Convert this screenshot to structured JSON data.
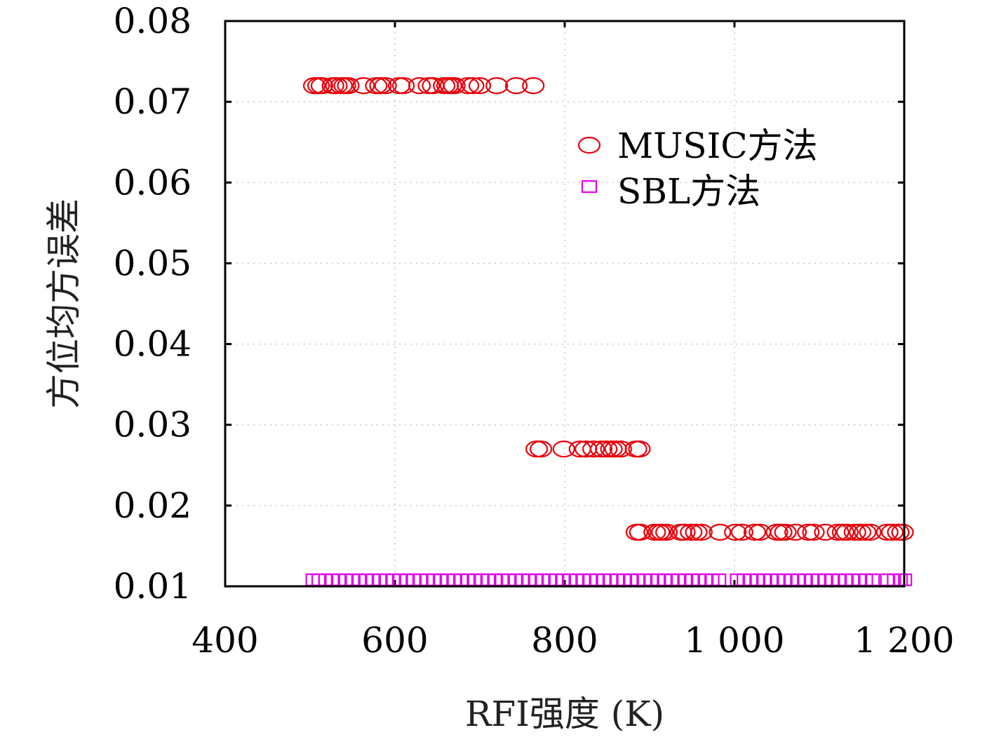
{
  "chart_data": {
    "type": "scatter",
    "xlabel": "RFI强度 (K)",
    "ylabel": "方位均方误差",
    "xlim": [
      400,
      1200
    ],
    "ylim": [
      0.01,
      0.08
    ],
    "x_ticks": [
      400,
      600,
      800,
      1000,
      1200
    ],
    "x_tick_labels": [
      "400",
      "600",
      "800",
      "1 000",
      "1 200"
    ],
    "y_ticks": [
      0.01,
      0.02,
      0.03,
      0.04,
      0.05,
      0.06,
      0.07,
      0.08
    ],
    "y_tick_labels": [
      "0.01",
      "0.02",
      "0.03",
      "0.04",
      "0.05",
      "0.06",
      "0.07",
      "0.08"
    ],
    "grid": true,
    "legend_position": "top-right",
    "series": [
      {
        "name": "MUSIC方法",
        "marker": "circle",
        "color": "#e8000b",
        "points": [
          [
            505,
            0.072
          ],
          [
            510,
            0.072
          ],
          [
            514,
            0.072
          ],
          [
            527,
            0.072
          ],
          [
            531,
            0.072
          ],
          [
            537,
            0.072
          ],
          [
            541,
            0.072
          ],
          [
            545,
            0.072
          ],
          [
            563,
            0.072
          ],
          [
            578,
            0.072
          ],
          [
            583,
            0.072
          ],
          [
            589,
            0.072
          ],
          [
            605,
            0.072
          ],
          [
            610,
            0.072
          ],
          [
            629,
            0.072
          ],
          [
            640,
            0.072
          ],
          [
            645,
            0.072
          ],
          [
            658,
            0.072
          ],
          [
            662,
            0.072
          ],
          [
            666,
            0.072
          ],
          [
            670,
            0.072
          ],
          [
            686,
            0.072
          ],
          [
            692,
            0.072
          ],
          [
            700,
            0.072
          ],
          [
            720,
            0.072
          ],
          [
            743,
            0.072
          ],
          [
            763,
            0.072
          ],
          [
            767,
            0.027
          ],
          [
            772,
            0.027
          ],
          [
            799,
            0.027
          ],
          [
            818,
            0.027
          ],
          [
            825,
            0.027
          ],
          [
            834,
            0.027
          ],
          [
            843,
            0.027
          ],
          [
            849,
            0.027
          ],
          [
            855,
            0.027
          ],
          [
            860,
            0.027
          ],
          [
            866,
            0.027
          ],
          [
            884,
            0.027
          ],
          [
            888,
            0.027
          ],
          [
            885,
            0.0167
          ],
          [
            889,
            0.0167
          ],
          [
            906,
            0.0167
          ],
          [
            911,
            0.0167
          ],
          [
            915,
            0.0167
          ],
          [
            920,
            0.0167
          ],
          [
            937,
            0.0167
          ],
          [
            941,
            0.0167
          ],
          [
            949,
            0.0167
          ],
          [
            955,
            0.0167
          ],
          [
            961,
            0.0167
          ],
          [
            983,
            0.0167
          ],
          [
            1001,
            0.0167
          ],
          [
            1009,
            0.0167
          ],
          [
            1024,
            0.0167
          ],
          [
            1030,
            0.0167
          ],
          [
            1050,
            0.0167
          ],
          [
            1055,
            0.0167
          ],
          [
            1060,
            0.0167
          ],
          [
            1072,
            0.0167
          ],
          [
            1087,
            0.0167
          ],
          [
            1093,
            0.0167
          ],
          [
            1107,
            0.0167
          ],
          [
            1122,
            0.0167
          ],
          [
            1128,
            0.0167
          ],
          [
            1133,
            0.0167
          ],
          [
            1142,
            0.0167
          ],
          [
            1148,
            0.0167
          ],
          [
            1154,
            0.0167
          ],
          [
            1160,
            0.0167
          ],
          [
            1180,
            0.0167
          ],
          [
            1186,
            0.0167
          ],
          [
            1193,
            0.0167
          ],
          [
            1198,
            0.0167
          ]
        ]
      },
      {
        "name": "SBL方法",
        "marker": "square",
        "color": "#e800e8",
        "points": [
          [
            503,
            0.0108
          ],
          [
            510,
            0.0108
          ],
          [
            518,
            0.0108
          ],
          [
            526,
            0.0108
          ],
          [
            534,
            0.0108
          ],
          [
            542,
            0.0108
          ],
          [
            550,
            0.0108
          ],
          [
            558,
            0.0108
          ],
          [
            566,
            0.0108
          ],
          [
            574,
            0.0108
          ],
          [
            582,
            0.0108
          ],
          [
            590,
            0.0108
          ],
          [
            598,
            0.0108
          ],
          [
            606,
            0.0108
          ],
          [
            614,
            0.0108
          ],
          [
            622,
            0.0108
          ],
          [
            630,
            0.0108
          ],
          [
            638,
            0.0108
          ],
          [
            646,
            0.0108
          ],
          [
            654,
            0.0108
          ],
          [
            662,
            0.0108
          ],
          [
            670,
            0.0108
          ],
          [
            678,
            0.0108
          ],
          [
            686,
            0.0108
          ],
          [
            694,
            0.0108
          ],
          [
            702,
            0.0108
          ],
          [
            710,
            0.0108
          ],
          [
            718,
            0.0108
          ],
          [
            726,
            0.0108
          ],
          [
            734,
            0.0108
          ],
          [
            742,
            0.0108
          ],
          [
            750,
            0.0108
          ],
          [
            758,
            0.0108
          ],
          [
            766,
            0.0108
          ],
          [
            774,
            0.0108
          ],
          [
            782,
            0.0108
          ],
          [
            790,
            0.0108
          ],
          [
            798,
            0.0108
          ],
          [
            806,
            0.0108
          ],
          [
            814,
            0.0108
          ],
          [
            822,
            0.0108
          ],
          [
            830,
            0.0108
          ],
          [
            838,
            0.0108
          ],
          [
            846,
            0.0108
          ],
          [
            854,
            0.0108
          ],
          [
            862,
            0.0108
          ],
          [
            870,
            0.0108
          ],
          [
            878,
            0.0108
          ],
          [
            886,
            0.0108
          ],
          [
            894,
            0.0108
          ],
          [
            902,
            0.0108
          ],
          [
            910,
            0.0108
          ],
          [
            918,
            0.0108
          ],
          [
            926,
            0.0108
          ],
          [
            934,
            0.0108
          ],
          [
            942,
            0.0108
          ],
          [
            950,
            0.0108
          ],
          [
            958,
            0.0108
          ],
          [
            966,
            0.0108
          ],
          [
            974,
            0.0108
          ],
          [
            982,
            0.0108
          ],
          [
            1003,
            0.0108
          ],
          [
            1011,
            0.0108
          ],
          [
            1019,
            0.0108
          ],
          [
            1027,
            0.0108
          ],
          [
            1035,
            0.0108
          ],
          [
            1043,
            0.0108
          ],
          [
            1051,
            0.0108
          ],
          [
            1059,
            0.0108
          ],
          [
            1067,
            0.0108
          ],
          [
            1075,
            0.0108
          ],
          [
            1083,
            0.0108
          ],
          [
            1091,
            0.0108
          ],
          [
            1099,
            0.0108
          ],
          [
            1107,
            0.0108
          ],
          [
            1115,
            0.0108
          ],
          [
            1123,
            0.0108
          ],
          [
            1131,
            0.0108
          ],
          [
            1139,
            0.0108
          ],
          [
            1147,
            0.0108
          ],
          [
            1155,
            0.0108
          ],
          [
            1163,
            0.0108
          ],
          [
            1180,
            0.0108
          ],
          [
            1188,
            0.0108
          ],
          [
            1196,
            0.0108
          ],
          [
            1201,
            0.0108
          ]
        ]
      }
    ]
  }
}
